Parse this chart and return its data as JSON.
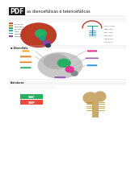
{
  "background_color": "#ffffff",
  "title_text": "as diencefálicas e telencefálicas",
  "pdf_label": "PDF",
  "pdf_bg": "#1a1a1a",
  "page_bg": "#f5f5f5",
  "text_color": "#333333",
  "gray_text": "#666666",
  "brain1_colors": {
    "outer": "#c0392b",
    "mid": "#d35400",
    "inner_green": "#27ae60",
    "inner_teal": "#16a085",
    "stem": "#8e44ad",
    "stem2": "#2c3e50"
  },
  "legend_colors": [
    "#e74c3c",
    "#e67e22",
    "#27ae60",
    "#1abc9c",
    "#3498db",
    "#8e44ad"
  ],
  "legend_labels": [
    "Telencéfalo",
    "Diencéfalo",
    "Mesencéfalo",
    "Ponte",
    "Medula",
    "Cerebelo"
  ],
  "right_brain_red": "#c0392b",
  "right_brain_green": "#27ae60",
  "right_brain_blue": "#2980b9",
  "right_brain_labels": [
    "Corpo caloso",
    "Hipoc.",
    "For. Monro",
    "Comissura",
    "Infundibulo",
    "Túlcus sinuoso"
  ],
  "brain2_gray": "#aaaaaa",
  "brain2_green": "#27ae60",
  "brain2_pink": "#e91e8c",
  "label_thalamo": "#f39c12",
  "label_hipotalamo": "#e67e22",
  "label_corpo": "#9b59b6",
  "label_talamo_optico": "#e91e8c",
  "label_talamo_lateral": "#9b59b6",
  "label_retina": "#3498db",
  "bottom_green": "#27ae60",
  "bottom_red": "#e74c3c",
  "bottom_label1": "SNC",
  "bottom_label2": "SNP"
}
